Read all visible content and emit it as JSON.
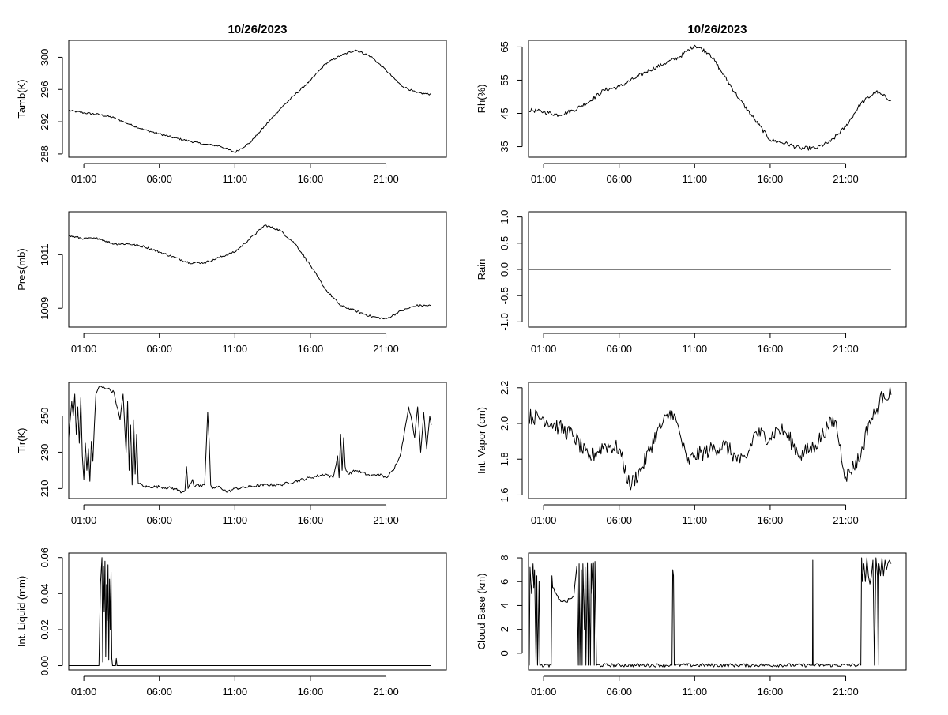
{
  "figure": {
    "date_title": "10/26/2023",
    "x_tick_labels": [
      "01:00",
      "06:00",
      "11:00",
      "16:00",
      "21:00"
    ]
  },
  "chart_data": [
    {
      "id": "tamb",
      "type": "line",
      "title": "10/26/2023",
      "xlabel": "",
      "ylabel": "Tamb(K)",
      "xlim": [
        0,
        25
      ],
      "ylim": [
        287.6,
        302.1
      ],
      "yticks": [
        288,
        292,
        296,
        300
      ],
      "ytick_labels": [
        "288",
        "292",
        "296",
        "300"
      ],
      "xticks": [
        1,
        6,
        11,
        16,
        21
      ],
      "noise": 0.12,
      "x": [
        0,
        1,
        2,
        3,
        4,
        5,
        6,
        7,
        8,
        9,
        10,
        11,
        12,
        13,
        14,
        15,
        16,
        17,
        18,
        19,
        20,
        21,
        22,
        23,
        24
      ],
      "y": [
        293.4,
        293.1,
        292.9,
        292.5,
        291.7,
        291.0,
        290.5,
        290.0,
        289.6,
        289.2,
        289.0,
        288.2,
        289.4,
        291.5,
        293.6,
        295.4,
        297.1,
        299.2,
        300.2,
        300.9,
        300.1,
        298.4,
        296.5,
        295.6,
        295.4
      ]
    },
    {
      "id": "rh",
      "type": "line",
      "title": "10/26/2023",
      "xlabel": "",
      "ylabel": "Rh(%)",
      "xlim": [
        0,
        25
      ],
      "ylim": [
        31.8,
        67
      ],
      "yticks": [
        35,
        45,
        55,
        65
      ],
      "ytick_labels": [
        "35",
        "45",
        "55",
        "65"
      ],
      "xticks": [
        1,
        6,
        11,
        16,
        21
      ],
      "noise": 0.6,
      "x": [
        0,
        1,
        2,
        3,
        4,
        5,
        6,
        7,
        8,
        9,
        10,
        11,
        12,
        13,
        14,
        15,
        16,
        17,
        18,
        19,
        20,
        21,
        22,
        23,
        24
      ],
      "y": [
        46,
        45.5,
        44.5,
        46,
        48.5,
        52,
        53,
        55.5,
        58,
        60,
        62,
        65.5,
        63,
        56,
        49,
        43,
        37,
        36,
        34.5,
        34.5,
        36.5,
        41,
        48,
        51.5,
        49
      ]
    },
    {
      "id": "pres",
      "type": "line",
      "title": "",
      "xlabel": "",
      "ylabel": "Pres(mb)",
      "xlim": [
        0,
        25
      ],
      "ylim": [
        1008.3,
        1012.6
      ],
      "yticks": [
        1009,
        1011
      ],
      "ytick_labels": [
        "1009",
        "1011"
      ],
      "xticks": [
        1,
        6,
        11,
        16,
        21
      ],
      "noise": 0.04,
      "x": [
        0,
        1,
        2,
        3,
        4,
        5,
        6,
        7,
        8,
        9,
        10,
        11,
        12,
        13,
        14,
        15,
        16,
        17,
        18,
        19,
        20,
        21,
        22,
        23,
        24
      ],
      "y": [
        1011.7,
        1011.6,
        1011.6,
        1011.4,
        1011.4,
        1011.3,
        1011.1,
        1010.9,
        1010.7,
        1010.7,
        1010.9,
        1011.1,
        1011.6,
        1012.1,
        1011.9,
        1011.4,
        1010.6,
        1009.7,
        1009.1,
        1008.9,
        1008.7,
        1008.6,
        1008.9,
        1009.1,
        1009.1
      ]
    },
    {
      "id": "rain",
      "type": "line",
      "title": "",
      "xlabel": "",
      "ylabel": "Rain",
      "xlim": [
        0,
        25
      ],
      "ylim": [
        -1.1,
        1.1
      ],
      "yticks": [
        -1.0,
        -0.5,
        0.0,
        0.5,
        1.0
      ],
      "ytick_labels": [
        "-1.0",
        "-0.5",
        "0.0",
        "0.5",
        "1.0"
      ],
      "xticks": [
        1,
        6,
        11,
        16,
        21
      ],
      "noise": 0,
      "x": [
        0,
        24
      ],
      "y": [
        0,
        0
      ]
    },
    {
      "id": "tir",
      "type": "line",
      "title": "",
      "xlabel": "",
      "ylabel": "Tir(K)",
      "xlim": [
        0,
        25
      ],
      "ylim": [
        204.5,
        268.5
      ],
      "yticks": [
        210,
        230,
        250
      ],
      "ytick_labels": [
        "210",
        "230",
        "250"
      ],
      "xticks": [
        1,
        6,
        11,
        16,
        21
      ],
      "noise": 0.8,
      "x": [
        0,
        0.2,
        0.3,
        0.4,
        0.5,
        0.6,
        0.7,
        0.8,
        0.9,
        1.0,
        1.1,
        1.2,
        1.3,
        1.4,
        1.5,
        1.6,
        1.7,
        1.8,
        1.9,
        2.0,
        2.3,
        2.6,
        3.0,
        3.2,
        3.4,
        3.6,
        3.8,
        3.9,
        4.0,
        4.1,
        4.2,
        4.3,
        4.4,
        4.5,
        4.6,
        5.0,
        6.0,
        7.0,
        7.5,
        7.7,
        7.8,
        7.9,
        8.0,
        8.2,
        8.3,
        8.5,
        8.8,
        9.0,
        9.2,
        9.3,
        9.4,
        9.5,
        10.0,
        10.5,
        11.0,
        12.0,
        13.0,
        14.0,
        15.0,
        16.0,
        17.0,
        17.5,
        17.7,
        17.8,
        17.9,
        18.0,
        18.1,
        18.2,
        18.3,
        18.5,
        19.0,
        20.0,
        20.5,
        21.0,
        21.5,
        22.0,
        22.3,
        22.5,
        22.7,
        22.9,
        23.1,
        23.3,
        23.5,
        23.7,
        23.9,
        24.0
      ],
      "y": [
        238,
        258,
        250,
        262,
        240,
        255,
        235,
        260,
        228,
        215,
        235,
        220,
        232,
        214,
        236,
        225,
        245,
        262,
        264,
        266,
        266,
        265,
        263,
        255,
        248,
        262,
        230,
        258,
        220,
        245,
        212,
        248,
        218,
        240,
        213,
        211,
        211,
        210,
        208,
        209,
        222,
        210,
        212,
        215,
        211,
        212,
        211,
        212,
        252,
        236,
        212,
        210,
        211,
        208,
        210,
        211,
        212,
        212,
        214,
        216,
        218,
        216,
        223,
        228,
        216,
        240,
        220,
        238,
        222,
        218,
        220,
        217,
        218,
        216,
        220,
        230,
        245,
        255,
        248,
        238,
        255,
        230,
        252,
        232,
        250,
        245
      ]
    },
    {
      "id": "vapor",
      "type": "line",
      "title": "",
      "xlabel": "",
      "ylabel": "Int. Vapor (cm)",
      "xlim": [
        0,
        25
      ],
      "ylim": [
        1.58,
        2.23
      ],
      "yticks": [
        1.6,
        1.8,
        2.0,
        2.2
      ],
      "ytick_labels": [
        "1.6",
        "1.8",
        "2.0",
        "2.2"
      ],
      "xticks": [
        1,
        6,
        11,
        16,
        21
      ],
      "noise": 0.045,
      "x": [
        0,
        1,
        2,
        3,
        4,
        5,
        6,
        6.7,
        7.5,
        8.5,
        9.5,
        10,
        10.5,
        11,
        12,
        13,
        14,
        14.5,
        15,
        16,
        16.5,
        17,
        18,
        19,
        19.8,
        20.3,
        21,
        22,
        22.5,
        23,
        23.5,
        24
      ],
      "y": [
        2.04,
        2.03,
        1.98,
        1.93,
        1.8,
        1.88,
        1.86,
        1.65,
        1.75,
        1.95,
        2.07,
        1.95,
        1.78,
        1.82,
        1.85,
        1.88,
        1.78,
        1.82,
        1.95,
        1.92,
        1.97,
        1.95,
        1.82,
        1.88,
        1.98,
        2.02,
        1.7,
        1.82,
        2.0,
        2.06,
        2.17,
        2.16
      ]
    },
    {
      "id": "liquid",
      "type": "line",
      "title": "",
      "xlabel": "",
      "ylabel": "Int. Liquid (mm)",
      "xlim": [
        0,
        25
      ],
      "ylim": [
        -0.0024,
        0.0625
      ],
      "yticks": [
        0.0,
        0.02,
        0.04,
        0.06
      ],
      "ytick_labels": [
        "0.00",
        "0.02",
        "0.04",
        "0.06"
      ],
      "xticks": [
        1,
        6,
        11,
        16,
        21
      ],
      "noise": 0,
      "x": [
        0,
        2.0,
        2.1,
        2.2,
        2.25,
        2.3,
        2.35,
        2.4,
        2.45,
        2.5,
        2.55,
        2.6,
        2.65,
        2.7,
        2.75,
        2.8,
        2.85,
        2.9,
        3.1,
        3.15,
        3.2,
        24
      ],
      "y": [
        0,
        0,
        0.045,
        0.06,
        0.002,
        0.055,
        0.03,
        0.058,
        0.005,
        0.045,
        0.025,
        0.056,
        0.003,
        0.048,
        0.02,
        0.052,
        0.004,
        0,
        0,
        0.004,
        0,
        0
      ]
    },
    {
      "id": "cloudbase",
      "type": "line",
      "title": "",
      "xlabel": "",
      "ylabel": "Cloud Base (km)",
      "xlim": [
        0,
        25
      ],
      "ylim": [
        -1.4,
        8.4
      ],
      "yticks": [
        0,
        2,
        4,
        6,
        8
      ],
      "ytick_labels": [
        "0",
        "2",
        "4",
        "6",
        "8"
      ],
      "xticks": [
        1,
        6,
        11,
        16,
        21
      ],
      "noise": 0.15,
      "x": [
        0,
        0.05,
        0.1,
        0.2,
        0.3,
        0.35,
        0.4,
        0.5,
        0.55,
        0.6,
        0.7,
        0.75,
        0.8,
        1.5,
        1.55,
        1.6,
        2.0,
        2.5,
        3.0,
        3.2,
        3.3,
        3.35,
        3.4,
        3.5,
        3.55,
        3.6,
        3.7,
        3.75,
        3.8,
        3.9,
        3.95,
        4.0,
        4.1,
        4.15,
        4.2,
        4.3,
        4.35,
        4.4,
        4.5,
        9.5,
        9.55,
        9.6,
        9.65,
        9.7,
        9.75,
        18.8,
        18.82,
        18.84,
        18.86,
        22.0,
        22.05,
        22.1,
        22.2,
        22.3,
        22.4,
        22.5,
        22.6,
        22.7,
        22.8,
        22.9,
        23.0,
        23.1,
        23.15,
        23.2,
        23.3,
        23.4,
        23.5,
        23.6,
        23.7,
        23.8,
        23.9,
        24.0
      ],
      "y": [
        -1,
        -1,
        7.2,
        5.0,
        7.5,
        5.5,
        7.0,
        -1,
        6.5,
        -1,
        6.0,
        -1,
        -1,
        -1,
        6.5,
        5.5,
        4.5,
        4.3,
        4.8,
        7.3,
        -1,
        7.5,
        -1,
        7.0,
        -1,
        7.5,
        2.0,
        7.2,
        -1,
        7.6,
        -1,
        7.0,
        -1,
        7.5,
        5.0,
        7.6,
        -1,
        7.7,
        -1,
        -1,
        7.0,
        6.5,
        -1,
        -1,
        -1,
        -1,
        7.8,
        -1,
        -1,
        -1,
        8.0,
        6.0,
        7.5,
        6.0,
        8.0,
        6.5,
        5.8,
        6.5,
        7.8,
        -1,
        8.0,
        6.5,
        -1,
        7.5,
        6.5,
        8.0,
        6.5,
        7.8,
        7.0,
        7.6,
        7.8,
        7.5
      ]
    }
  ]
}
